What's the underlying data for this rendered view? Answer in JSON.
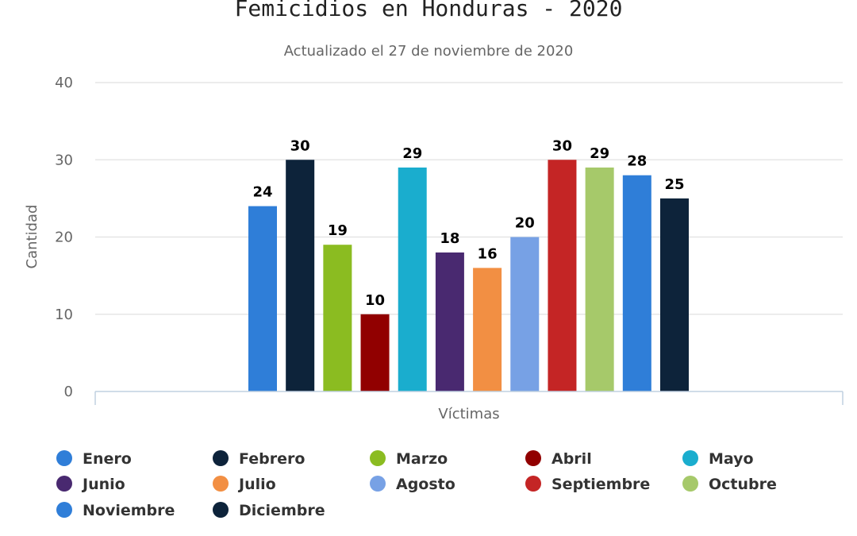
{
  "chart_data": {
    "type": "bar",
    "title": "Femicidios en Honduras - 2020",
    "subtitle": "Actualizado el 27 de noviembre de 2020",
    "xlabel": "Víctimas",
    "ylabel": "Cantidad",
    "ylim": [
      0,
      40
    ],
    "yticks": [
      0,
      10,
      20,
      30,
      40
    ],
    "grid": true,
    "legend_position": "bottom",
    "series": [
      {
        "name": "Enero",
        "value": 24,
        "color": "#2f7ed8"
      },
      {
        "name": "Febrero",
        "value": 30,
        "color": "#0d233a"
      },
      {
        "name": "Marzo",
        "value": 19,
        "color": "#8bbc21"
      },
      {
        "name": "Abril",
        "value": 10,
        "color": "#910000"
      },
      {
        "name": "Mayo",
        "value": 29,
        "color": "#1aadce"
      },
      {
        "name": "Junio",
        "value": 18,
        "color": "#492970"
      },
      {
        "name": "Julio",
        "value": 16,
        "color": "#f28f43"
      },
      {
        "name": "Agosto",
        "value": 20,
        "color": "#77a1e5"
      },
      {
        "name": "Septiembre",
        "value": 30,
        "color": "#c42525"
      },
      {
        "name": "Octubre",
        "value": 29,
        "color": "#a6c96a"
      },
      {
        "name": "Noviembre",
        "value": 28,
        "color": "#2f7ed8"
      },
      {
        "name": "Diciembre",
        "value": 25,
        "color": "#0d233a"
      }
    ]
  }
}
